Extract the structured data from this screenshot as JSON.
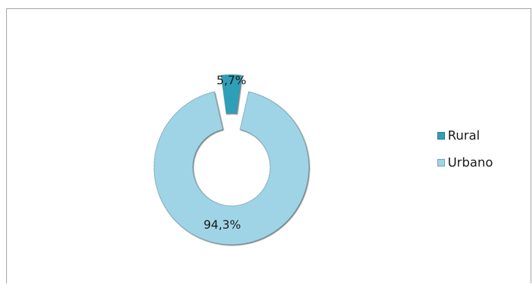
{
  "chart_data": {
    "type": "pie",
    "style": "donut, exploded",
    "categories": [
      "Rural",
      "Urbano"
    ],
    "values": [
      5.7,
      94.3
    ],
    "value_labels": [
      "5,7%",
      "94,3%"
    ],
    "colors": [
      "#2f9fb7",
      "#9fd4e6"
    ],
    "legend": "right"
  }
}
